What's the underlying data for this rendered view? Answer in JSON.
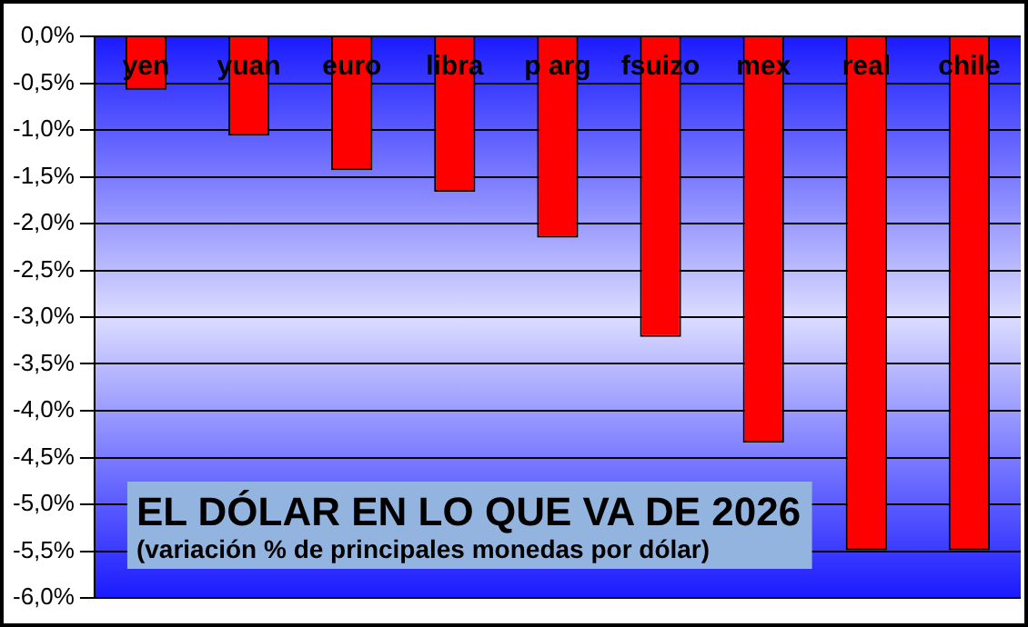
{
  "chart_data": {
    "type": "bar",
    "title": "EL DÓLAR EN LO QUE VA DE 2026",
    "subtitle": "(variación % de principales monedas por dólar)",
    "categories": [
      "yen",
      "yuan",
      "euro",
      "libra",
      "p arg",
      "fsuizo",
      "mex",
      "real",
      "chile"
    ],
    "values": [
      -0.57,
      -1.06,
      -1.43,
      -1.66,
      -2.15,
      -3.21,
      -4.34,
      -5.49,
      -5.49
    ],
    "color": "#ff0000",
    "ylim": [
      -6,
      0
    ],
    "yticks": [
      {
        "value": 0,
        "label": "0,0%"
      },
      {
        "value": -0.5,
        "label": "-0,5%"
      },
      {
        "value": -1,
        "label": "-1,0%"
      },
      {
        "value": -1.5,
        "label": "-1,5%"
      },
      {
        "value": -2,
        "label": "-2,0%"
      },
      {
        "value": -2.5,
        "label": "-2,5%"
      },
      {
        "value": -3,
        "label": "-3,0%"
      },
      {
        "value": -3.5,
        "label": "-3,5%"
      },
      {
        "value": -4,
        "label": "-4,0%"
      },
      {
        "value": -4.5,
        "label": "-4,5%"
      },
      {
        "value": -5,
        "label": "-5,0%"
      },
      {
        "value": -5.5,
        "label": "-5,5%"
      },
      {
        "value": -6,
        "label": "-6,0%"
      }
    ],
    "grid": "y",
    "legend": false
  }
}
